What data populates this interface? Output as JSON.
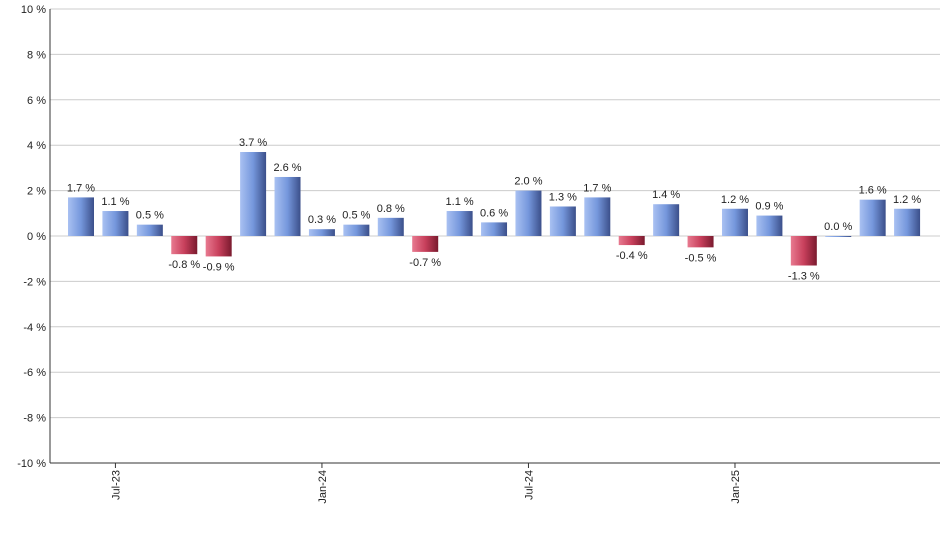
{
  "chart_data": {
    "type": "bar",
    "categories": [
      null,
      "Jul-23",
      null,
      null,
      null,
      null,
      null,
      "Jan-24",
      null,
      null,
      null,
      null,
      null,
      "Jul-24",
      null,
      null,
      null,
      null,
      null,
      "Jan-25",
      null,
      null,
      null,
      null,
      null
    ],
    "values": [
      1.7,
      1.1,
      0.5,
      -0.8,
      -0.9,
      3.7,
      2.6,
      0.3,
      0.5,
      0.8,
      -0.7,
      1.1,
      0.6,
      2.0,
      1.3,
      1.7,
      -0.4,
      1.4,
      -0.5,
      1.2,
      0.9,
      -1.3,
      0.0,
      1.6,
      1.2
    ],
    "value_labels": [
      "1.7 %",
      "1.1 %",
      "0.5 %",
      "-0.8 %",
      "-0.9 %",
      "3.7 %",
      "2.6 %",
      "0.3 %",
      "0.5 %",
      "0.8 %",
      "-0.7 %",
      "1.1 %",
      "0.6 %",
      "2.0 %",
      "1.3 %",
      "1.7 %",
      "-0.4 %",
      "1.4 %",
      "-0.5 %",
      "1.2 %",
      "0.9 %",
      "-1.3 %",
      "0.0 %",
      "1.6 %",
      "1.2 %"
    ],
    "ylim": [
      -10,
      10
    ],
    "yticks": [
      {
        "value": -10,
        "label": "-10 %"
      },
      {
        "value": -8,
        "label": "-8 %"
      },
      {
        "value": -6,
        "label": "-6 %"
      },
      {
        "value": -4,
        "label": "-4 %"
      },
      {
        "value": -2,
        "label": "-2 %"
      },
      {
        "value": 0,
        "label": "0 %"
      },
      {
        "value": 2,
        "label": "2 %"
      },
      {
        "value": 4,
        "label": "4 %"
      },
      {
        "value": 6,
        "label": "6 %"
      },
      {
        "value": 8,
        "label": "8 %"
      },
      {
        "value": 10,
        "label": "10 %"
      }
    ],
    "grid": true,
    "positive_color": "#6f8fd6",
    "negative_color": "#c8405c"
  }
}
